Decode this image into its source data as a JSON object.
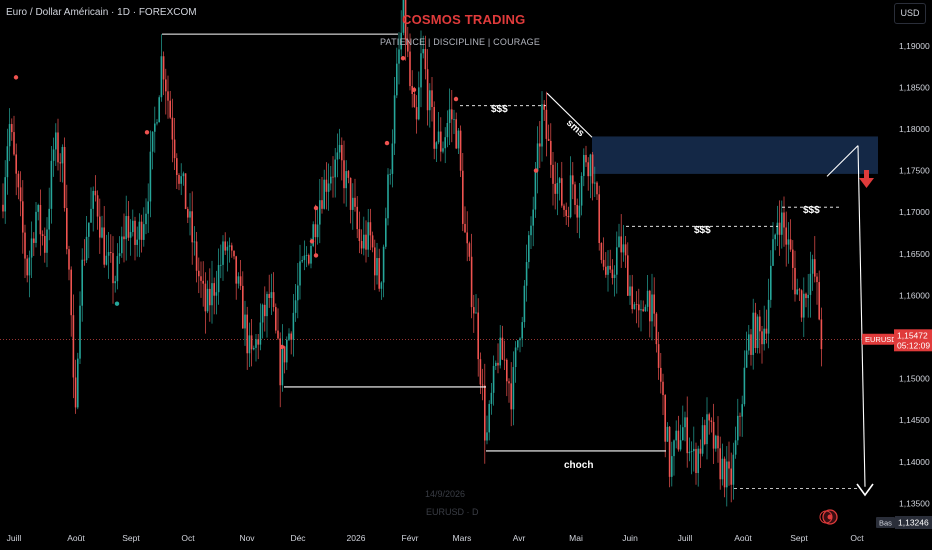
{
  "header": {
    "symbol_title": "Euro / Dollar Américain · 1D · FOREXCOM",
    "brand": "COSMOS TRADING",
    "motto": "PATIENCE  |  DISCIPLINE  |  COURAGE",
    "currency_button": "USD"
  },
  "watermark": {
    "date": "14/9/2026",
    "symbol": "EURUSD · D"
  },
  "colors": {
    "background": "#000000",
    "bull": "#26a69a",
    "bear": "#ef5350",
    "zone": "#152a4a",
    "annotation": "#ffffff",
    "price_tag": "#e03b3b"
  },
  "chart_data": {
    "type": "candlestick",
    "symbol": "EURUSD",
    "timeframe": "1D",
    "x_ticks": [
      "Juill",
      "Août",
      "Sept",
      "Oct",
      "Nov",
      "Déc",
      "2026",
      "Févr",
      "Mars",
      "Avr",
      "Mai",
      "Juin",
      "Juill",
      "Août",
      "Sept",
      "Oct"
    ],
    "y_ticks": [
      "1,19000",
      "1,18500",
      "1,18000",
      "1,17500",
      "1,17000",
      "1,16500",
      "1,16000",
      "1,15500",
      "1,15000",
      "1,14500",
      "1,14000",
      "1,13500"
    ],
    "y_range": [
      1.1318,
      1.1955
    ],
    "current_price": {
      "value": 1.15472,
      "label": "EURUSD",
      "price_text": "1,15472",
      "countdown": "05:12:09"
    },
    "low_marker": {
      "label": "Bas",
      "price_text": "1,13246",
      "value": 1.13246
    },
    "price_path": [
      [
        0,
        1.168
      ],
      [
        9,
        1.181
      ],
      [
        18,
        1.172
      ],
      [
        27,
        1.163
      ],
      [
        36,
        1.17
      ],
      [
        45,
        1.166
      ],
      [
        54,
        1.178
      ],
      [
        63,
        1.176
      ],
      [
        71,
        1.158
      ],
      [
        75,
        1.142
      ],
      [
        79,
        1.16
      ],
      [
        87,
        1.168
      ],
      [
        96,
        1.172
      ],
      [
        106,
        1.164
      ],
      [
        116,
        1.162
      ],
      [
        126,
        1.169
      ],
      [
        136,
        1.166
      ],
      [
        146,
        1.171
      ],
      [
        153,
        1.178
      ],
      [
        162,
        1.189
      ],
      [
        170,
        1.182
      ],
      [
        177,
        1.176
      ],
      [
        186,
        1.171
      ],
      [
        196,
        1.164
      ],
      [
        206,
        1.158
      ],
      [
        216,
        1.162
      ],
      [
        226,
        1.166
      ],
      [
        236,
        1.162
      ],
      [
        244,
        1.157
      ],
      [
        251,
        1.152
      ],
      [
        260,
        1.156
      ],
      [
        270,
        1.16
      ],
      [
        280,
        1.151
      ],
      [
        290,
        1.156
      ],
      [
        300,
        1.162
      ],
      [
        310,
        1.166
      ],
      [
        320,
        1.172
      ],
      [
        330,
        1.175
      ],
      [
        340,
        1.176
      ],
      [
        350,
        1.172
      ],
      [
        360,
        1.166
      ],
      [
        370,
        1.167
      ],
      [
        380,
        1.161
      ],
      [
        390,
        1.176
      ],
      [
        398,
        1.188
      ],
      [
        404,
        1.194
      ],
      [
        410,
        1.185
      ],
      [
        416,
        1.179
      ],
      [
        422,
        1.19
      ],
      [
        428,
        1.184
      ],
      [
        434,
        1.179
      ],
      [
        442,
        1.178
      ],
      [
        450,
        1.182
      ],
      [
        458,
        1.179
      ],
      [
        464,
        1.168
      ],
      [
        470,
        1.162
      ],
      [
        476,
        1.157
      ],
      [
        482,
        1.149
      ],
      [
        486,
        1.142
      ],
      [
        492,
        1.148
      ],
      [
        498,
        1.153
      ],
      [
        505,
        1.152
      ],
      [
        512,
        1.148
      ],
      [
        518,
        1.155
      ],
      [
        524,
        1.16
      ],
      [
        530,
        1.167
      ],
      [
        536,
        1.174
      ],
      [
        542,
        1.182
      ],
      [
        548,
        1.178
      ],
      [
        554,
        1.175
      ],
      [
        560,
        1.172
      ],
      [
        566,
        1.17
      ],
      [
        572,
        1.174
      ],
      [
        578,
        1.171
      ],
      [
        585,
        1.177
      ],
      [
        592,
        1.176
      ],
      [
        598,
        1.169
      ],
      [
        604,
        1.163
      ],
      [
        610,
        1.161
      ],
      [
        616,
        1.165
      ],
      [
        622,
        1.166
      ],
      [
        628,
        1.162
      ],
      [
        634,
        1.159
      ],
      [
        640,
        1.156
      ],
      [
        646,
        1.161
      ],
      [
        652,
        1.158
      ],
      [
        658,
        1.152
      ],
      [
        664,
        1.146
      ],
      [
        670,
        1.139
      ],
      [
        676,
        1.142
      ],
      [
        682,
        1.144
      ],
      [
        688,
        1.143
      ],
      [
        694,
        1.14
      ],
      [
        700,
        1.142
      ],
      [
        706,
        1.144
      ],
      [
        712,
        1.143
      ],
      [
        718,
        1.14
      ],
      [
        724,
        1.139
      ],
      [
        730,
        1.137
      ],
      [
        736,
        1.142
      ],
      [
        742,
        1.148
      ],
      [
        748,
        1.154
      ],
      [
        754,
        1.156
      ],
      [
        760,
        1.155
      ],
      [
        766,
        1.157
      ],
      [
        772,
        1.164
      ],
      [
        778,
        1.17
      ],
      [
        784,
        1.168
      ],
      [
        790,
        1.165
      ],
      [
        796,
        1.161
      ],
      [
        802,
        1.159
      ],
      [
        808,
        1.162
      ],
      [
        814,
        1.163
      ],
      [
        818,
        1.159
      ],
      [
        822,
        1.154
      ]
    ],
    "dots": [
      [
        16,
        1.1862
      ],
      [
        117,
        1.159
      ],
      [
        147,
        1.1796
      ],
      [
        282,
        1.1538
      ],
      [
        312,
        1.1665
      ],
      [
        316,
        1.1705
      ],
      [
        316,
        1.1648
      ],
      [
        387,
        1.1783
      ],
      [
        403,
        1.1885
      ],
      [
        414,
        1.1847
      ],
      [
        456,
        1.1836
      ],
      [
        536,
        1.175
      ]
    ],
    "annotations": {
      "labels": [
        "$$$",
        "sms",
        "$$$",
        "$$$",
        "choch"
      ],
      "supply_zone": {
        "x0": 592,
        "x1": 878,
        "top": 1.1791,
        "bottom": 1.1746
      },
      "lines": [
        {
          "kind": "solid",
          "x0": 162,
          "x1": 398,
          "y0": 1.1914,
          "y1": 1.1914
        },
        {
          "kind": "solid",
          "x0": 284,
          "x1": 486,
          "y0": 1.149,
          "y1": 1.149
        },
        {
          "kind": "solid",
          "x0": 486,
          "x1": 666,
          "y0": 1.1413,
          "y1": 1.1413
        },
        {
          "kind": "dashed",
          "x0": 460,
          "x1": 546,
          "y0": 1.1828,
          "y1": 1.1828
        },
        {
          "kind": "dashed",
          "x0": 626,
          "x1": 778,
          "y0": 1.1683,
          "y1": 1.1683
        },
        {
          "kind": "dashed",
          "x0": 782,
          "x1": 840,
          "y0": 1.1706,
          "y1": 1.1706
        },
        {
          "kind": "dashed",
          "x0": 734,
          "x1": 860,
          "y0": 1.1368,
          "y1": 1.1368
        },
        {
          "kind": "solid",
          "x0": 547,
          "x1": 592,
          "y0": 1.1843,
          "y1": 1.179
        },
        {
          "kind": "solid",
          "x0": 827,
          "x1": 858,
          "y0": 1.1743,
          "y1": 1.178
        },
        {
          "kind": "solid",
          "x0": 858,
          "x1": 865,
          "y0": 1.178,
          "y1": 1.137
        }
      ]
    }
  }
}
